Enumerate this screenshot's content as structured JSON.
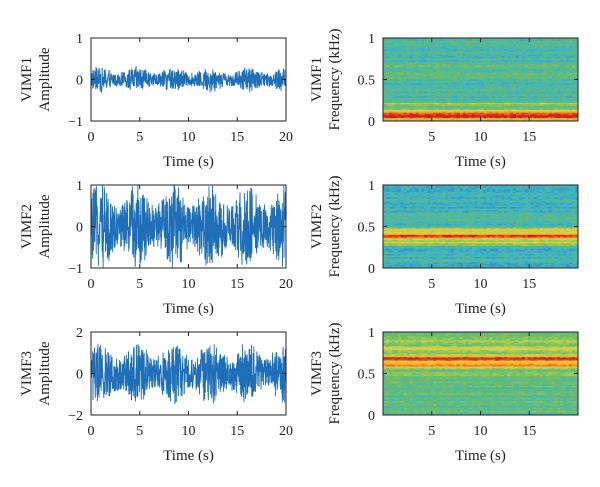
{
  "chart_data": [
    {
      "type": "line",
      "panel": "VIMF1 time",
      "ylabel": "VIMF1\nAmplitude",
      "xlabel": "Time (s)",
      "xlim": [
        0,
        20
      ],
      "ylim": [
        -1,
        1
      ],
      "xticks": [
        0,
        5,
        10,
        15,
        20
      ],
      "yticks": [
        -1,
        0,
        1
      ],
      "signal": {
        "amplitude": 0.3,
        "bias": 0.0
      },
      "color": "#1f6fb8"
    },
    {
      "type": "heatmap",
      "panel": "VIMF1 spectrogram",
      "ylabel": "VIMF1\nFrequency (kHz)",
      "xlabel": "Time (s)",
      "xlim": [
        0,
        20
      ],
      "ylim": [
        0,
        1
      ],
      "xticks": [
        5,
        10,
        15
      ],
      "yticks": [
        0,
        0.5,
        1
      ],
      "ytick_labels": [
        "0",
        "0.5",
        "1"
      ],
      "bands": [
        {
          "freq": 0.05,
          "intensity": 0.95
        },
        {
          "freq": 0.1,
          "intensity": 0.75
        },
        {
          "freq": 0.2,
          "intensity": 0.45
        },
        {
          "freq": 0.55,
          "intensity": 0.35
        },
        {
          "freq": 0.65,
          "intensity": 0.3
        }
      ],
      "base_intensity": 0.25
    },
    {
      "type": "line",
      "panel": "VIMF2 time",
      "ylabel": "VIMF2\nAmplitude",
      "xlabel": "Time (s)",
      "xlim": [
        0,
        20
      ],
      "ylim": [
        -1,
        1
      ],
      "xticks": [
        0,
        5,
        10,
        15,
        20
      ],
      "yticks": [
        -1,
        0,
        1
      ],
      "signal": {
        "amplitude": 1.0,
        "bias": 0.0
      },
      "color": "#1f6fb8"
    },
    {
      "type": "heatmap",
      "panel": "VIMF2 spectrogram",
      "ylabel": "VIMF2\nFrequency (kHz)",
      "xlabel": "Time (s)",
      "xlim": [
        0,
        20
      ],
      "ylim": [
        0,
        1
      ],
      "xticks": [
        5,
        10,
        15
      ],
      "yticks": [
        0,
        0.5,
        1
      ],
      "ytick_labels": [
        "0",
        "0.5",
        "1"
      ],
      "bands": [
        {
          "freq": 0.38,
          "intensity": 0.98
        },
        {
          "freq": 0.45,
          "intensity": 0.6
        },
        {
          "freq": 0.3,
          "intensity": 0.5
        },
        {
          "freq": 0.6,
          "intensity": 0.3
        }
      ],
      "base_intensity": 0.2
    },
    {
      "type": "line",
      "panel": "VIMF3 time",
      "ylabel": "VIMF3\nAmplitude",
      "xlabel": "Time (s)",
      "xlim": [
        0,
        20
      ],
      "ylim": [
        -2,
        2
      ],
      "xticks": [
        0,
        5,
        10,
        15,
        20
      ],
      "yticks": [
        -2,
        0,
        2
      ],
      "signal": {
        "amplitude": 1.5,
        "bias": 0.0
      },
      "color": "#1f6fb8"
    },
    {
      "type": "heatmap",
      "panel": "VIMF3 spectrogram",
      "ylabel": "VIMF3\nFrequency (kHz)",
      "xlabel": "Time (s)",
      "xlim": [
        0,
        20
      ],
      "ylim": [
        0,
        1
      ],
      "xticks": [
        5,
        10,
        15
      ],
      "yticks": [
        0,
        0.5,
        1
      ],
      "ytick_labels": [
        "0",
        "0.5",
        "1"
      ],
      "bands": [
        {
          "freq": 0.68,
          "intensity": 1.0
        },
        {
          "freq": 0.6,
          "intensity": 0.8
        },
        {
          "freq": 0.8,
          "intensity": 0.6
        },
        {
          "freq": 0.5,
          "intensity": 0.45
        },
        {
          "freq": 0.9,
          "intensity": 0.45
        }
      ],
      "base_intensity": 0.3
    }
  ]
}
